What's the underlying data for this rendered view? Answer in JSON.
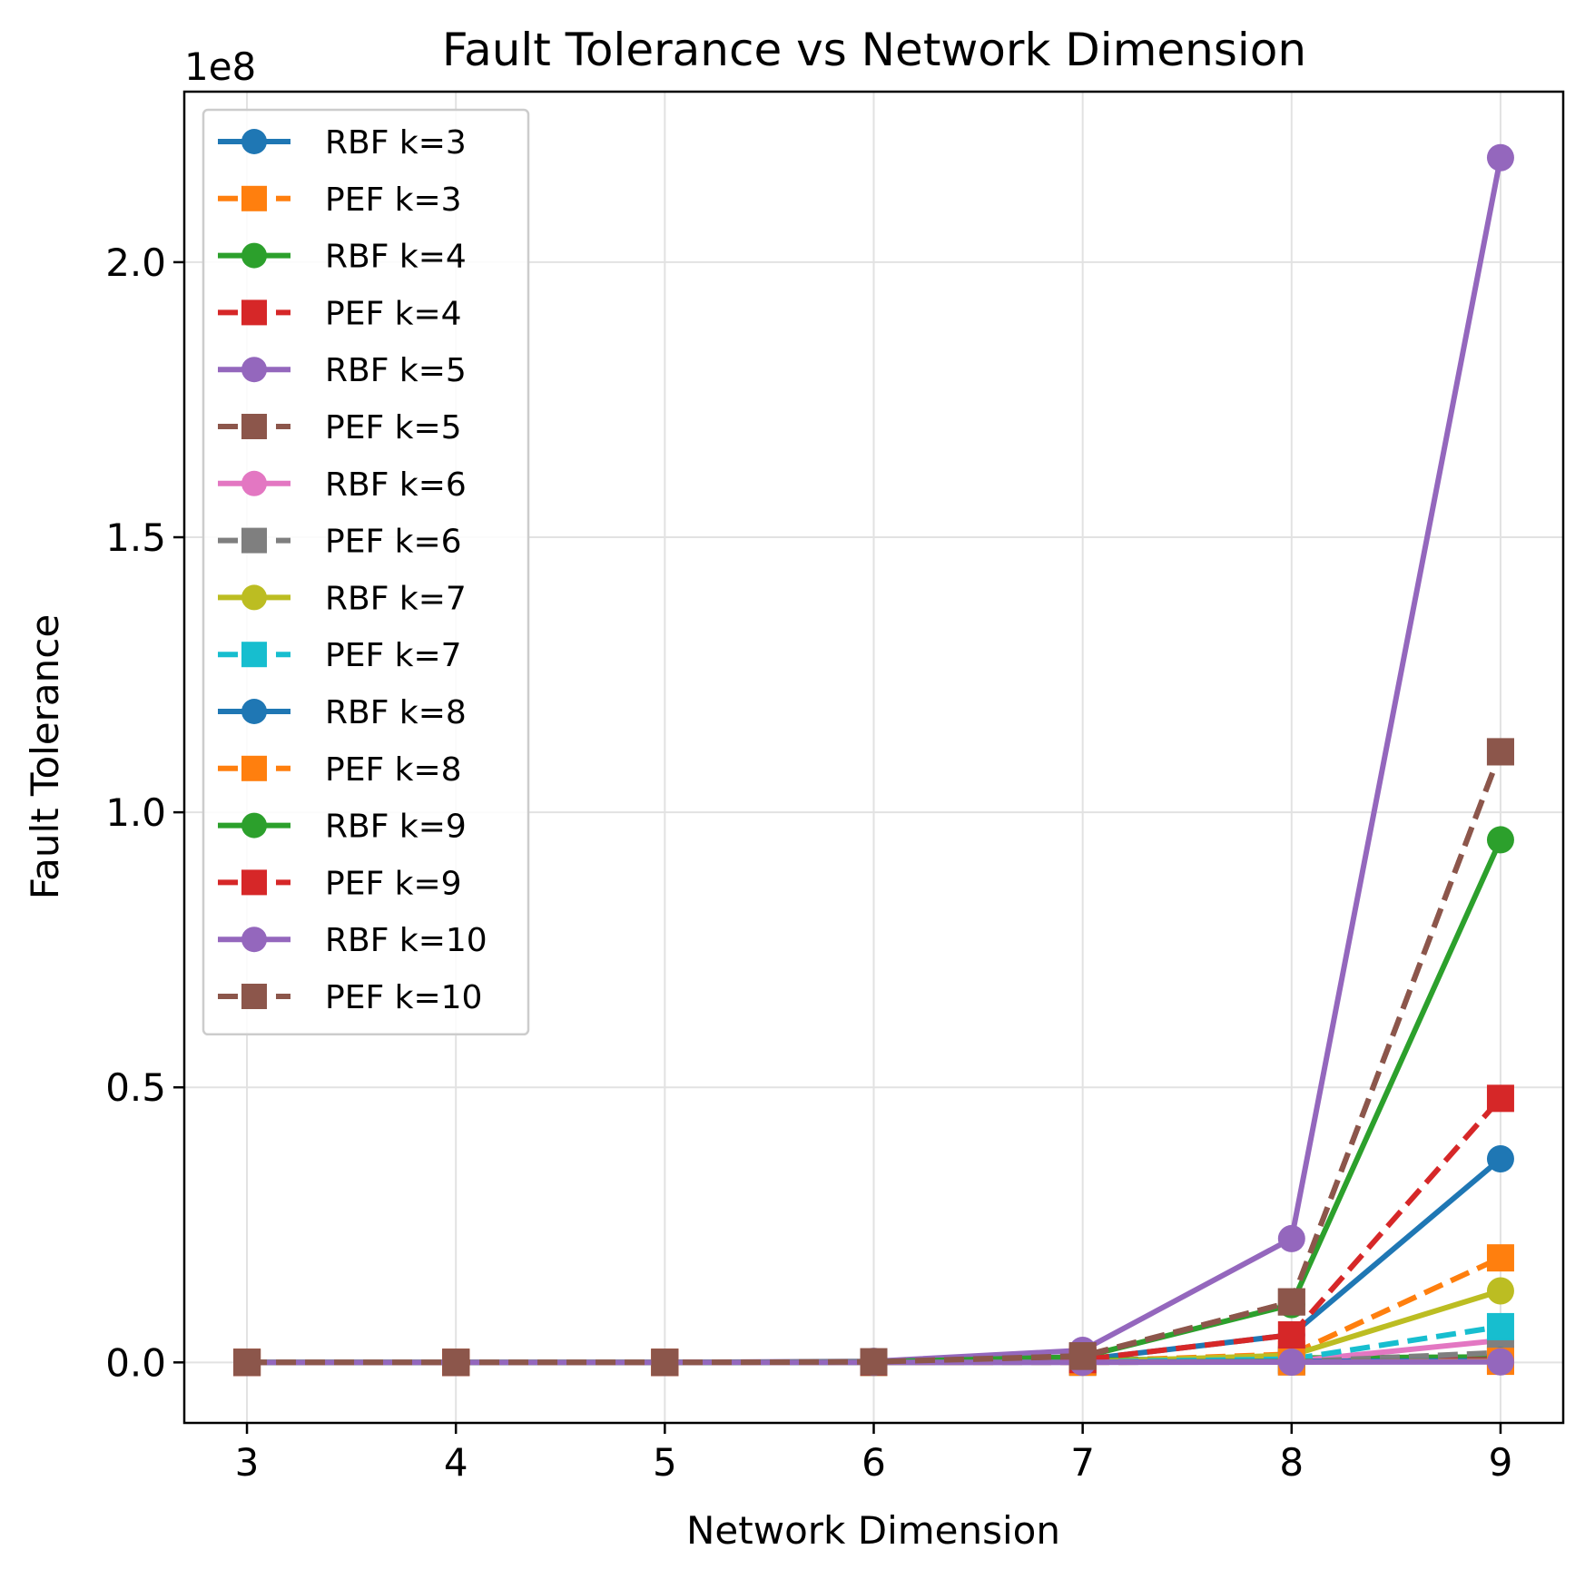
{
  "chart_data": {
    "type": "line",
    "title": "Fault Tolerance vs Network Dimension",
    "xlabel": "Network Dimension",
    "ylabel": "Fault Tolerance",
    "y_offset_label": "1e8",
    "y_scale": 100000000,
    "xlim": [
      2.7,
      9.3
    ],
    "ylim": [
      -0.11,
      2.31
    ],
    "x_ticks": [
      3,
      4,
      5,
      6,
      7,
      8,
      9
    ],
    "y_ticks": [
      0.0,
      0.5,
      1.0,
      1.5,
      2.0
    ],
    "y_tick_labels": [
      "0.0",
      "0.5",
      "1.0",
      "1.5",
      "2.0"
    ],
    "grid": true,
    "legend_position": "upper-left",
    "x": [
      3,
      4,
      5,
      6,
      7,
      8,
      9
    ],
    "series": [
      {
        "name": "RBF k=3",
        "color": "#1f77b4",
        "dash": "solid",
        "marker": "circle",
        "values": [
          0,
          0,
          0,
          0.0005,
          0.005,
          0.05,
          0.37
        ]
      },
      {
        "name": "PEF k=3",
        "color": "#ff7f0e",
        "dash": "dashed",
        "marker": "square",
        "values": [
          0,
          0,
          0,
          0.0002,
          0.002,
          0.015,
          0.19
        ]
      },
      {
        "name": "RBF k=4",
        "color": "#2ca02c",
        "dash": "solid",
        "marker": "circle",
        "values": [
          0,
          0,
          0,
          0.0004,
          0.004,
          0.008,
          0.01
        ]
      },
      {
        "name": "PEF k=4",
        "color": "#d62728",
        "dash": "dashed",
        "marker": "square",
        "values": [
          0,
          0,
          0,
          0.0002,
          0.002,
          0.004,
          0.005
        ]
      },
      {
        "name": "RBF k=5",
        "color": "#9467bd",
        "dash": "solid",
        "marker": "circle",
        "values": [
          0,
          0,
          0,
          0.002,
          0.022,
          0.225,
          2.19
        ]
      },
      {
        "name": "PEF k=5",
        "color": "#8c564b",
        "dash": "dashed",
        "marker": "square",
        "values": [
          0,
          0,
          0,
          0.001,
          0.012,
          0.11,
          1.11
        ]
      },
      {
        "name": "RBF k=6",
        "color": "#e377c2",
        "dash": "solid",
        "marker": "circle",
        "values": [
          0,
          0,
          0,
          0.0001,
          0.0003,
          0.002,
          0.04
        ]
      },
      {
        "name": "PEF k=6",
        "color": "#7f7f7f",
        "dash": "dashed",
        "marker": "square",
        "values": [
          0,
          0,
          0,
          0.0001,
          0.0002,
          0.001,
          0.018
        ]
      },
      {
        "name": "RBF k=7",
        "color": "#bcbd22",
        "dash": "solid",
        "marker": "circle",
        "values": [
          0,
          0,
          0,
          0.0001,
          0.001,
          0.013,
          0.13
        ]
      },
      {
        "name": "PEF k=7",
        "color": "#17becf",
        "dash": "dashed",
        "marker": "square",
        "values": [
          0,
          0,
          0,
          0.0001,
          0.0008,
          0.006,
          0.065
        ]
      },
      {
        "name": "RBF k=8",
        "color": "#1f77b4",
        "dash": "solid",
        "marker": "circle",
        "values": [
          0,
          0,
          0,
          0.0001,
          0.0005,
          0.002,
          0.003
        ]
      },
      {
        "name": "PEF k=8",
        "color": "#ff7f0e",
        "dash": "dashed",
        "marker": "square",
        "values": [
          0,
          0,
          0,
          0.0001,
          0.0003,
          0.001,
          0.002
        ]
      },
      {
        "name": "RBF k=9",
        "color": "#2ca02c",
        "dash": "solid",
        "marker": "circle",
        "values": [
          0,
          0,
          0,
          0.001,
          0.01,
          0.105,
          0.95
        ]
      },
      {
        "name": "PEF k=9",
        "color": "#d62728",
        "dash": "dashed",
        "marker": "square",
        "values": [
          0,
          0,
          0,
          0.0005,
          0.005,
          0.05,
          0.48
        ]
      },
      {
        "name": "RBF k=10",
        "color": "#9467bd",
        "dash": "solid",
        "marker": "circle",
        "values": [
          0,
          0,
          0,
          0.0001,
          0.0002,
          0.0005,
          0.001
        ]
      },
      {
        "name": "PEF k=10",
        "color": "#8c564b",
        "dash": "dashed",
        "marker": "square",
        "values": [
          0,
          0,
          0,
          0.001,
          0.011,
          0.11,
          1.11
        ]
      }
    ]
  }
}
